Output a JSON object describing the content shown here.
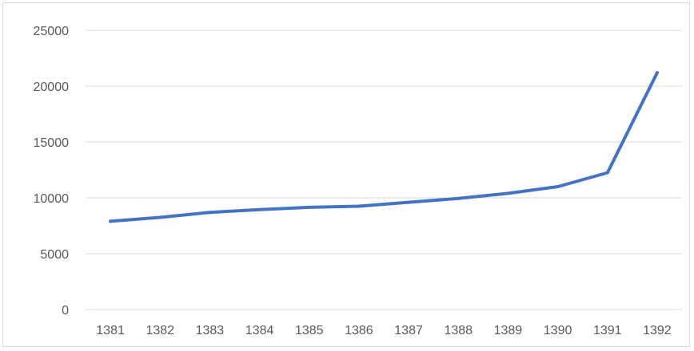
{
  "chart_data": {
    "type": "line",
    "categories": [
      "1381",
      "1382",
      "1383",
      "1384",
      "1385",
      "1386",
      "1387",
      "1388",
      "1389",
      "1390",
      "1391",
      "1392"
    ],
    "series": [
      {
        "values": [
          7900,
          8250,
          8700,
          8950,
          9150,
          9250,
          9600,
          9950,
          10400,
          11000,
          12250,
          21200
        ],
        "color": "#4472c4"
      }
    ],
    "y_ticks": [
      "0",
      "5000",
      "10000",
      "15000",
      "20000",
      "25000"
    ],
    "ylim": [
      0,
      25000
    ],
    "grid": "horizontal",
    "legend": "none",
    "title": "",
    "xlabel": "",
    "ylabel": ""
  }
}
